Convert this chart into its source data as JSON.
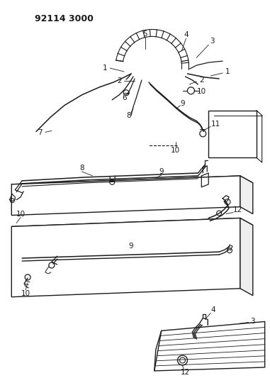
{
  "title": "92114 3000",
  "bg_color": "#ffffff",
  "line_color": "#1a1a1a",
  "figsize": [
    3.81,
    5.33
  ],
  "dpi": 100,
  "label_fs": 7.5,
  "title_fs": 9
}
